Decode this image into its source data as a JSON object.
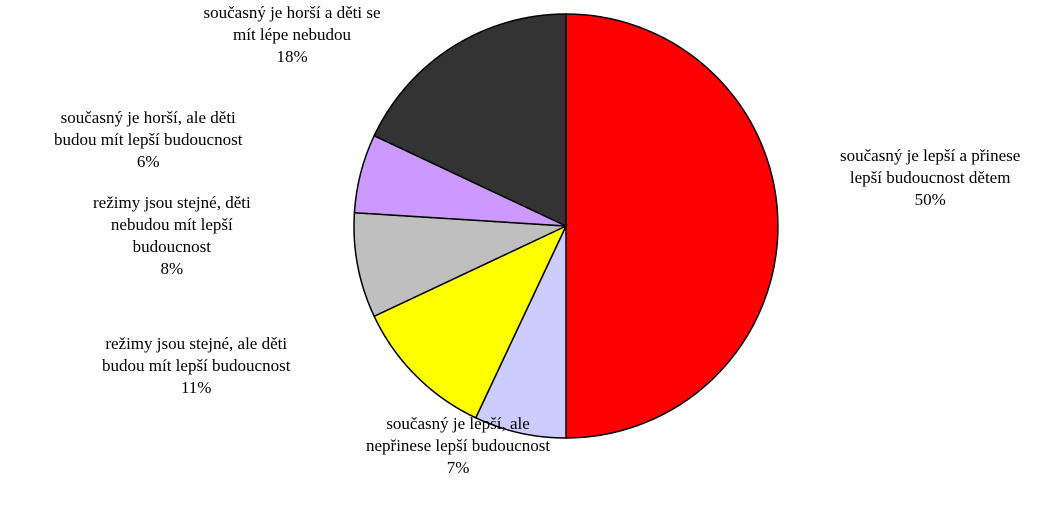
{
  "chart_data": {
    "type": "pie",
    "title": "",
    "start_angle_deg": 90,
    "direction": "clockwise",
    "slices": [
      {
        "label_lines": [
          "současný je lepší a přinese",
          "lepší budoucnost dětem"
        ],
        "value": 50,
        "value_label": "50%",
        "color": "#ff0000"
      },
      {
        "label_lines": [
          "současný je lepší, ale",
          "nepřinese lepší budoucnost"
        ],
        "value": 7,
        "value_label": "7%",
        "color": "#ccccff"
      },
      {
        "label_lines": [
          "režimy jsou stejné, ale děti",
          "budou mít lepší budoucnost"
        ],
        "value": 11,
        "value_label": "11%",
        "color": "#ffff00"
      },
      {
        "label_lines": [
          "režimy jsou stejné, děti",
          "nebudou mít lepší",
          "budoucnost"
        ],
        "value": 8,
        "value_label": "8%",
        "color": "#bfbfbf"
      },
      {
        "label_lines": [
          "současný je horší, ale děti",
          "budou mít lepší budoucnost"
        ],
        "value": 6,
        "value_label": "6%",
        "color": "#cc99ff"
      },
      {
        "label_lines": [
          "současný je horší a děti se",
          "mít lépe nebudou"
        ],
        "value": 18,
        "value_label": "18%",
        "color": "#333333"
      }
    ],
    "slice_border_color": "#000000",
    "legend": "none"
  }
}
